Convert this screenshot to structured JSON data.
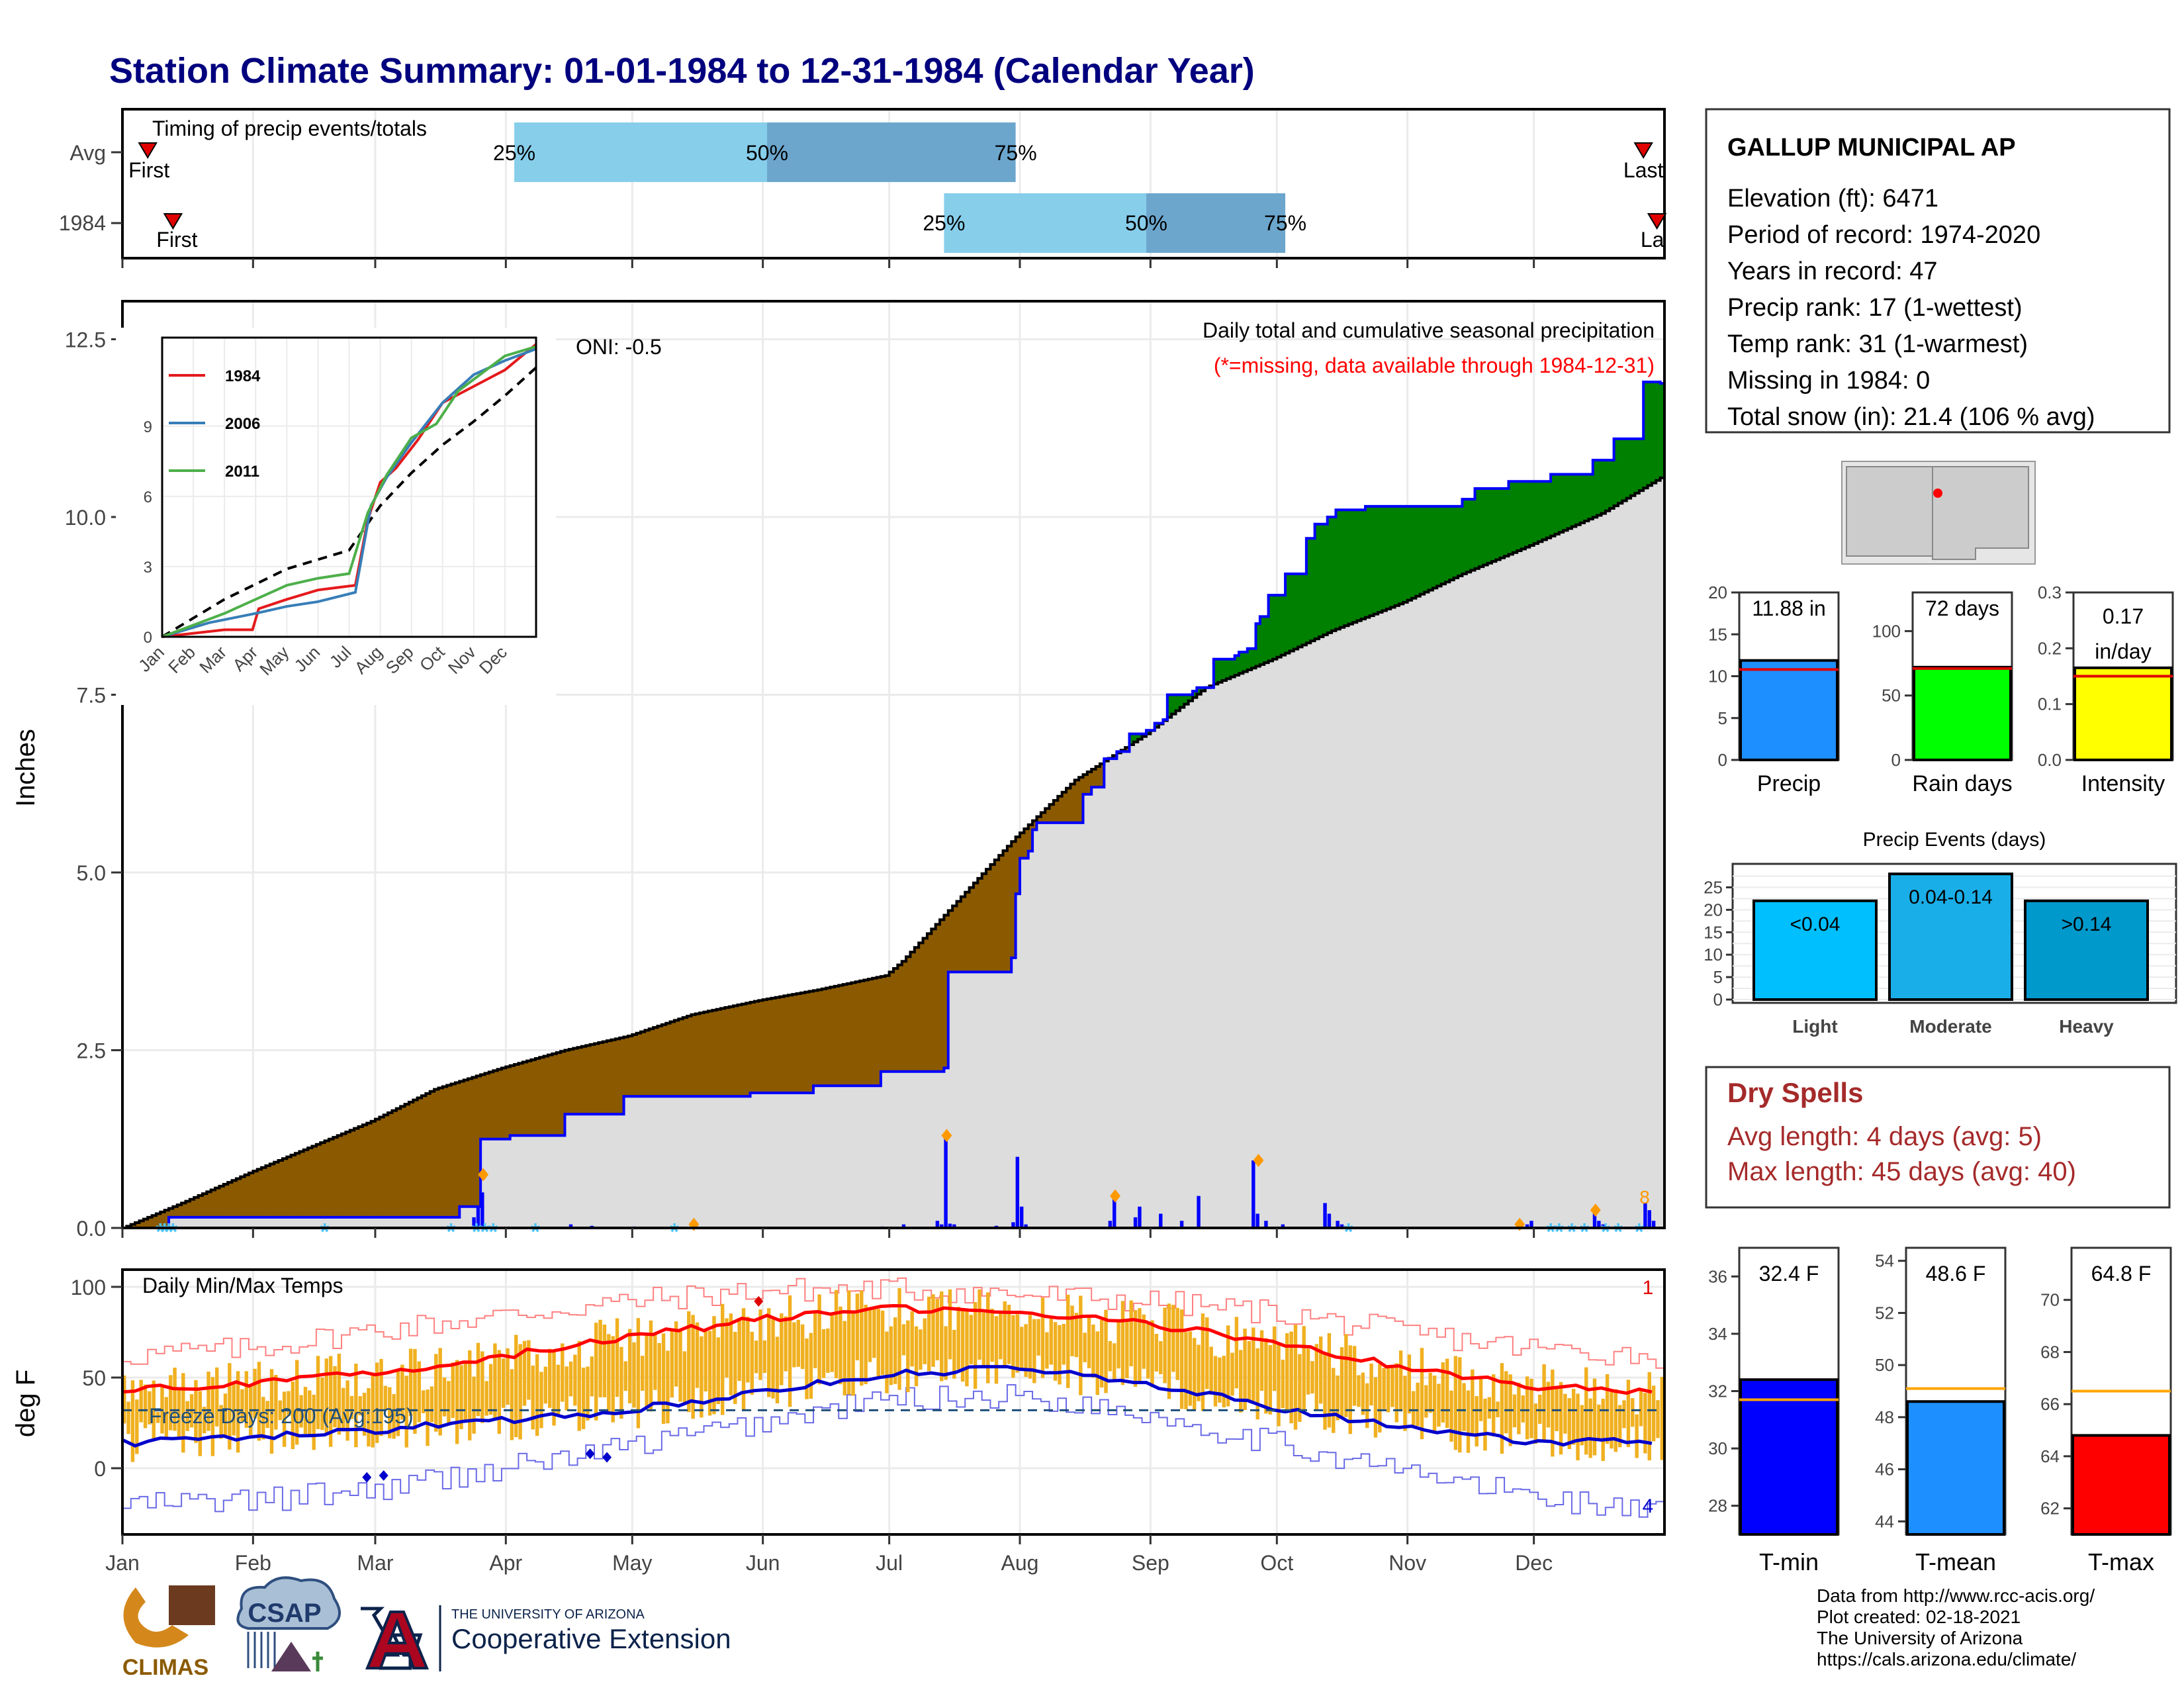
{
  "title": "Station Climate Summary: 01-01-1984 to 12-31-1984 (Calendar Year)",
  "colors": {
    "title": "#00007F",
    "avg_precip_fill": "#8B5A00",
    "above_fill": "#008000",
    "base_fill": "#DDDDDD",
    "cum_line": "#0000FF",
    "temp_bar": "#F0B020",
    "tmax_line": "#FF0000",
    "tmin_line": "#0000CC",
    "dry_spell_text": "#A52A2A"
  },
  "timing_panel": {
    "title": "Timing of precip events/totals",
    "rows": [
      "Avg",
      "1984"
    ],
    "first_label": "First",
    "last_label": "Last",
    "last_label_clipped": "La",
    "pct_labels": [
      "25%",
      "50%",
      "75%"
    ]
  },
  "station": {
    "name": "GALLUP MUNICIPAL AP",
    "lines": [
      "Elevation (ft): 6471",
      "Period of record: 1974-2020",
      "Years in record: 47",
      "Precip rank: 17 (1-wettest)",
      "Temp rank: 31 (1-warmest)",
      "Missing in 1984: 0",
      "Total snow (in): 21.4 (106 % avg)"
    ]
  },
  "main_panel": {
    "title_line1": "Daily total and cumulative seasonal precipitation",
    "title_line2": "(*=missing, data available through 1984-12-31)",
    "oni": "ONI: -0.5",
    "ylabel": "Inches",
    "corner_note": "8"
  },
  "temp_panel": {
    "title": "Daily Min/Max Temps",
    "ylabel": "deg F",
    "freeze_label": "Freeze Days: 200 (Avg:195)",
    "corner_top": "1",
    "corner_bottom": "4"
  },
  "months": [
    "Jan",
    "Feb",
    "Mar",
    "Apr",
    "May",
    "Jun",
    "Jul",
    "Aug",
    "Sep",
    "Oct",
    "Nov",
    "Dec"
  ],
  "mini_bars": {
    "precip": {
      "value_label": "11.88 in",
      "label": "Precip",
      "value": 11.88,
      "avg": 10.8,
      "ticks": [
        "0",
        "5",
        "10",
        "15",
        "20"
      ],
      "max": 20,
      "color": "#1E8FFF"
    },
    "rain_days": {
      "value_label": "72 days",
      "label": "Rain days",
      "value": 72,
      "avg": 71,
      "ticks": [
        "0",
        "50",
        "100"
      ],
      "max": 130,
      "color": "#00FF00"
    },
    "intensity": {
      "value_label_1": "0.17",
      "value_label_2": "in/day",
      "label": "Intensity",
      "value": 0.165,
      "avg": 0.15,
      "ticks": [
        "0.0",
        "0.1",
        "0.2",
        "0.3"
      ],
      "max": 0.3,
      "color": "#FFFF00"
    }
  },
  "precip_events": {
    "title": "Precip Events (days)",
    "categories": [
      "Light",
      "Moderate",
      "Heavy"
    ],
    "labels": [
      "<0.04",
      "0.04-0.14",
      ">0.14"
    ],
    "values": [
      22,
      28,
      22
    ],
    "ticks": [
      "0",
      "5",
      "10",
      "15",
      "20",
      "25"
    ],
    "colors": [
      "#00BFFF",
      "#1AAEE8",
      "#0099CC"
    ]
  },
  "dry_spells": {
    "title": "Dry Spells",
    "line1": "Avg length: 4 days (avg: 5)",
    "line2": "Max length: 45 days (avg: 40)"
  },
  "temp_bars": {
    "tmin": {
      "value_label": "32.4 F",
      "label": "T-min",
      "value": 32.4,
      "avg": 31.7,
      "ticks": [
        "28",
        "30",
        "32",
        "34",
        "36"
      ],
      "min": 27,
      "max": 37,
      "color": "#0000FF"
    },
    "tmean": {
      "value_label": "48.6 F",
      "label": "T-mean",
      "value": 48.6,
      "avg": 49.1,
      "ticks": [
        "44",
        "46",
        "48",
        "50",
        "52",
        "54"
      ],
      "min": 43.5,
      "max": 54.5,
      "color": "#1E8FFF"
    },
    "tmax": {
      "value_label": "64.8 F",
      "label": "T-max",
      "value": 64.8,
      "avg": 66.5,
      "ticks": [
        "62",
        "64",
        "66",
        "68",
        "70"
      ],
      "min": 61,
      "max": 72,
      "color": "#FF0000"
    }
  },
  "footer": {
    "lines": [
      "Data from http://www.rcc-acis.org/",
      "Plot created: 02-18-2021",
      "The University of Arizona",
      "https://cals.arizona.edu/climate/"
    ],
    "logo_climas": "CLIMAS",
    "logo_csap": "CSAP",
    "logo_ua_small": "THE UNIVERSITY OF ARIZONA",
    "logo_ua_big": "Cooperative Extension"
  },
  "chart_data": {
    "type": "area",
    "title": "Station Climate Summary: 01-01-1984 to 12-31-1984 (Calendar Year)",
    "ylabel": "Inches",
    "ylim": [
      0,
      13
    ],
    "yticks": [
      0.0,
      2.5,
      5.0,
      7.5,
      10.0,
      12.5
    ],
    "series": [
      {
        "name": "Avg cumulative precip",
        "x_doy": [
          1,
          15,
          32,
          46,
          60,
          75,
          91,
          106,
          121,
          136,
          152,
          166,
          182,
          186,
          196,
          213,
          227,
          244,
          258,
          274,
          288,
          305,
          319,
          335,
          352,
          366
        ],
        "values": [
          0.0,
          0.35,
          0.8,
          1.15,
          1.5,
          1.95,
          2.25,
          2.5,
          2.7,
          3.0,
          3.2,
          3.35,
          3.55,
          3.75,
          4.4,
          5.5,
          6.3,
          6.95,
          7.6,
          8.0,
          8.4,
          8.8,
          9.2,
          9.6,
          10.05,
          10.55
        ]
      },
      {
        "name": "1984 cumulative precip",
        "x_doy": [
          1,
          11,
          12,
          70,
          81,
          85,
          86,
          93,
          106,
          119,
          120,
          134,
          150,
          165,
          181,
          196,
          197,
          212,
          213,
          214,
          216,
          217,
          218,
          228,
          229,
          231,
          234,
          237,
          240,
          244,
          246,
          248,
          249,
          255,
          256,
          258,
          260,
          265,
          266,
          268,
          270,
          271,
          273,
          277,
          282,
          284,
          287,
          289,
          292,
          296,
          319,
          322,
          330,
          340,
          350,
          355,
          358,
          362,
          366
        ],
        "values": [
          0.0,
          0.0,
          0.15,
          0.15,
          0.3,
          0.3,
          1.25,
          1.3,
          1.6,
          1.6,
          1.85,
          1.85,
          1.9,
          2.0,
          2.2,
          2.25,
          3.6,
          3.8,
          4.7,
          5.2,
          5.3,
          5.6,
          5.7,
          5.7,
          6.1,
          6.2,
          6.6,
          6.7,
          6.95,
          7.0,
          7.1,
          7.15,
          7.5,
          7.55,
          7.6,
          7.6,
          8.0,
          8.05,
          8.1,
          8.15,
          8.5,
          8.6,
          8.9,
          9.2,
          9.7,
          9.9,
          10.0,
          10.1,
          10.1,
          10.15,
          10.25,
          10.4,
          10.5,
          10.6,
          10.8,
          11.1,
          11.1,
          11.9,
          11.88
        ]
      },
      {
        "name": "Daily precip",
        "x_doy": [
          84,
          85,
          86,
          107,
          112,
          122,
          132,
          181,
          186,
          194,
          195,
          196,
          197,
          198,
          208,
          212,
          213,
          214,
          215,
          235,
          236,
          241,
          242,
          247,
          252,
          256,
          269,
          270,
          272,
          276,
          286,
          287,
          289,
          290,
          334,
          335,
          350,
          351,
          352,
          362,
          363,
          364
        ],
        "values": [
          0.15,
          0.3,
          0.5,
          0.05,
          0.03,
          0.02,
          0.02,
          0.02,
          0.05,
          0.1,
          0.05,
          1.3,
          0.06,
          0.05,
          0.03,
          0.08,
          1.0,
          0.3,
          0.05,
          0.1,
          0.45,
          0.15,
          0.3,
          0.2,
          0.1,
          0.45,
          0.95,
          0.2,
          0.1,
          0.05,
          0.35,
          0.2,
          0.1,
          0.05,
          0.05,
          0.1,
          0.2,
          0.1,
          0.05,
          0.35,
          0.25,
          0.1
        ]
      }
    ],
    "inset": {
      "legend": [
        "1984",
        "2006",
        "2011"
      ],
      "legend_colors": [
        "#E41A1C",
        "#377EB8",
        "#4DAF4A"
      ],
      "yticks": [
        0,
        3,
        6,
        9
      ],
      "ylim": [
        0,
        12.5
      ],
      "months": [
        "Jan",
        "Feb",
        "Mar",
        "Apr",
        "May",
        "Jun",
        "Jul",
        "Aug",
        "Sep",
        "Oct",
        "Nov",
        "Dec"
      ],
      "series": [
        {
          "name": "Avg",
          "x_month": [
            0,
            2,
            4,
            6,
            7,
            8,
            9,
            10,
            11,
            12
          ],
          "values": [
            0,
            1.6,
            2.9,
            3.7,
            5.6,
            7.0,
            8.2,
            9.2,
            10.3,
            11.5
          ]
        },
        {
          "name": "1984",
          "x_month": [
            0,
            2,
            2.9,
            3.1,
            4,
            5,
            6.2,
            6.6,
            7,
            7.5,
            8.2,
            9,
            10,
            11,
            12
          ],
          "values": [
            0,
            0.3,
            0.3,
            1.2,
            1.6,
            2.0,
            2.2,
            5.0,
            6.6,
            7.2,
            8.4,
            10.0,
            10.7,
            11.4,
            12.5
          ]
        },
        {
          "name": "2006",
          "x_month": [
            0,
            1.5,
            3,
            4,
            5,
            6.2,
            6.7,
            7.2,
            8,
            9,
            10,
            11,
            12
          ],
          "values": [
            0,
            0.6,
            1.0,
            1.3,
            1.5,
            1.9,
            5.6,
            6.8,
            8.3,
            10.0,
            11.2,
            11.8,
            12.3
          ]
        },
        {
          "name": "2011",
          "x_month": [
            0,
            1,
            2,
            3,
            4,
            5,
            6,
            6.6,
            7.2,
            8,
            8.8,
            9.5,
            10.4,
            11,
            12
          ],
          "values": [
            0,
            0.5,
            1.0,
            1.6,
            2.2,
            2.5,
            2.7,
            5.3,
            6.9,
            8.5,
            9.1,
            10.5,
            11.4,
            12.0,
            12.4
          ]
        }
      ]
    },
    "temps": {
      "ylim": [
        -30,
        105
      ],
      "yticks": [
        0,
        50,
        100
      ],
      "freeze_line": 32,
      "avg_tmax": {
        "x_doy": [
          1,
          32,
          60,
          91,
          121,
          152,
          182,
          213,
          244,
          274,
          305,
          335,
          366
        ],
        "values": [
          43,
          47,
          52,
          62,
          72,
          82,
          88,
          86,
          80,
          69,
          56,
          45,
          42
        ]
      },
      "avg_tmin": {
        "x_doy": [
          1,
          32,
          60,
          91,
          121,
          152,
          182,
          213,
          244,
          274,
          305,
          335,
          366
        ],
        "values": [
          14,
          17,
          21,
          26,
          32,
          42,
          52,
          55,
          47,
          34,
          23,
          15,
          14
        ]
      },
      "record_high": {
        "x_doy": [
          1,
          32,
          60,
          91,
          121,
          152,
          182,
          213,
          244,
          274,
          305,
          335,
          366
        ],
        "values": [
          62,
          66,
          76,
          84,
          92,
          98,
          99,
          96,
          92,
          86,
          75,
          66,
          62
        ]
      },
      "record_low": {
        "x_doy": [
          1,
          32,
          60,
          91,
          121,
          152,
          182,
          213,
          244,
          274,
          305,
          335,
          366
        ],
        "values": [
          -20,
          -18,
          -12,
          0,
          12,
          25,
          38,
          40,
          30,
          14,
          -2,
          -15,
          -25
        ]
      }
    }
  }
}
